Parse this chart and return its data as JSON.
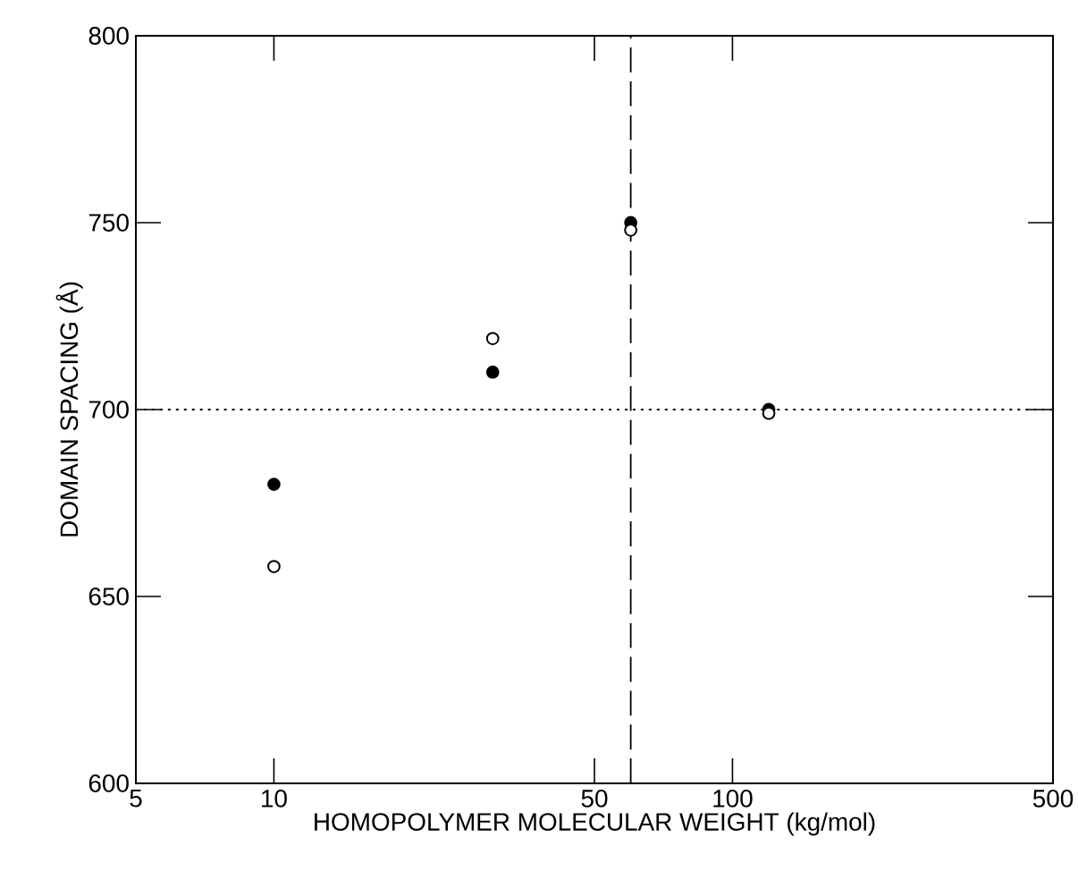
{
  "chart_data": {
    "type": "scatter",
    "xlabel": "HOMOPOLYMER MOLECULAR WEIGHT (kg/mol)",
    "ylabel": "DOMAIN SPACING (Å)",
    "log": "x",
    "xlim": [
      5,
      500
    ],
    "xticks": [
      5,
      10,
      50,
      100,
      500
    ],
    "ylim": [
      600,
      800
    ],
    "yticks": [
      600,
      650,
      700,
      750,
      800
    ],
    "grid": false,
    "series": [
      {
        "color": "#000000",
        "x": [
          10,
          30,
          60,
          120
        ],
        "values": [
          680,
          710,
          750,
          700
        ]
      },
      {
        "color": "#000000",
        "x": [
          10,
          30,
          60,
          120
        ],
        "values": [
          658,
          719,
          748,
          699
        ]
      }
    ],
    "ref_lines": [
      {
        "axis": "y",
        "value": 700,
        "line_style": "dotted"
      },
      {
        "axis": "x",
        "value": 60,
        "line_style": "dashed"
      }
    ]
  }
}
